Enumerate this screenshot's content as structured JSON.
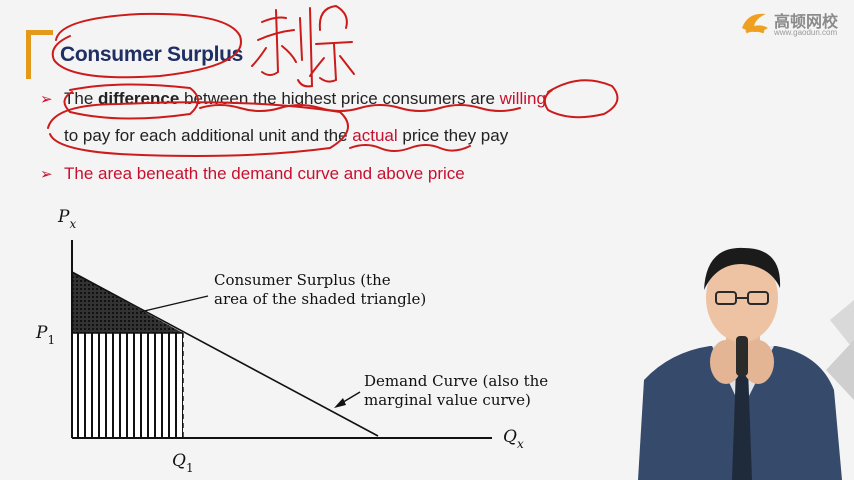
{
  "slide": {
    "title": "Consumer Surplus",
    "bullets": [
      {
        "line1_parts": [
          "The ",
          "difference",
          " between the highest price consumers are ",
          "willing"
        ],
        "line2_parts": [
          "to pay for each additional unit and the ",
          "actual",
          " price they pay"
        ]
      },
      {
        "text": "The area beneath the demand curve and above price"
      }
    ]
  },
  "logo": {
    "name": "高顿网校",
    "url": "www.gaodun.com"
  },
  "annotation": {
    "handwritten_text": "剩余"
  },
  "diagram": {
    "y_axis_label_main": "P",
    "y_axis_label_sub": "x",
    "x_axis_label_main": "Q",
    "x_axis_label_sub": "x",
    "price_label_main": "P",
    "price_label_sub": "1",
    "quantity_label_main": "Q",
    "quantity_label_sub": "1",
    "surplus_label_line1": "Consumer Surplus (the",
    "surplus_label_line2": "area of the shaded triangle)",
    "demand_label_line1": "Demand Curve (also the",
    "demand_label_line2": "marginal value curve)"
  },
  "colors": {
    "title": "#1f2f63",
    "accent_red": "#c8102e",
    "bracket_orange": "#e39a1b",
    "ink_red": "#cc1b1b"
  }
}
